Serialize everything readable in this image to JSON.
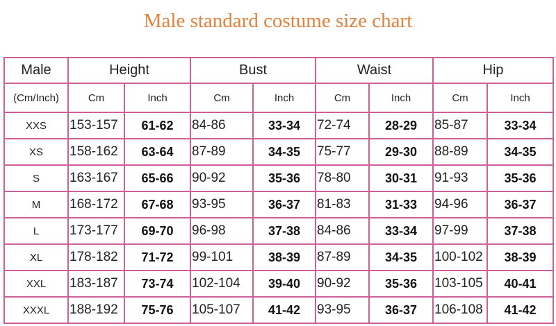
{
  "title": "Male standard costume size chart",
  "colors": {
    "title": "#e2823f",
    "border": "#cf5f98"
  },
  "header": {
    "first": "Male",
    "groups": [
      "Height",
      "Bust",
      "Waist",
      "Hip"
    ],
    "unit_label": "(Cm/Inch)",
    "cm": "Cm",
    "inch": "Inch"
  },
  "rows": [
    {
      "size": "XXS",
      "vals": [
        "153-157",
        "61-62",
        "84-86",
        "33-34",
        "72-74",
        "28-29",
        "85-87",
        "33-34"
      ]
    },
    {
      "size": "XS",
      "vals": [
        "158-162",
        "63-64",
        "87-89",
        "34-35",
        "75-77",
        "29-30",
        "88-89",
        "34-35"
      ]
    },
    {
      "size": "S",
      "vals": [
        "163-167",
        "65-66",
        "90-92",
        "35-36",
        "78-80",
        "30-31",
        "91-93",
        "35-36"
      ]
    },
    {
      "size": "M",
      "vals": [
        "168-172",
        "67-68",
        "93-95",
        "36-37",
        "81-83",
        "31-33",
        "94-96",
        "36-37"
      ]
    },
    {
      "size": "L",
      "vals": [
        "173-177",
        "69-70",
        "96-98",
        "37-38",
        "84-86",
        "33-34",
        "97-99",
        "37-38"
      ]
    },
    {
      "size": "XL",
      "vals": [
        "178-182",
        "71-72",
        "99-101",
        "38-39",
        "87-89",
        "34-35",
        "100-102",
        "38-39"
      ]
    },
    {
      "size": "XXL",
      "vals": [
        "183-187",
        "73-74",
        "102-104",
        "39-40",
        "90-92",
        "35-36",
        "103-105",
        "40-41"
      ]
    },
    {
      "size": "XXXL",
      "vals": [
        "188-192",
        "75-76",
        "105-107",
        "41-42",
        "93-95",
        "36-37",
        "106-108",
        "41-42"
      ]
    }
  ]
}
